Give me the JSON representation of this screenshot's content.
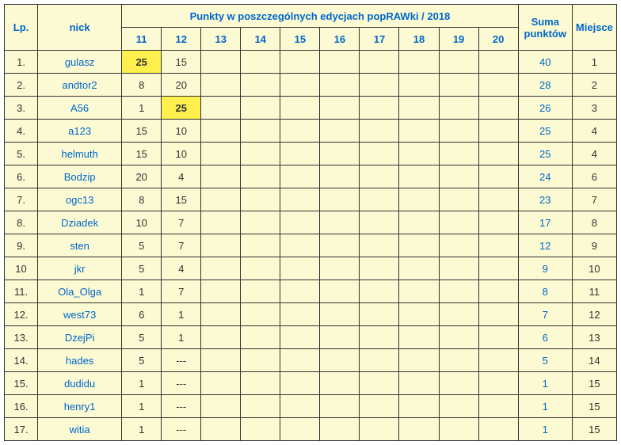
{
  "headers": {
    "lp": "Lp.",
    "nick": "nick",
    "editions_title": "Punkty w poszczególnych edycjach popRAWki / 2018",
    "editions": [
      "11",
      "12",
      "13",
      "14",
      "15",
      "16",
      "17",
      "18",
      "19",
      "20"
    ],
    "suma": "Suma punktów",
    "miejsce": "Miejsce"
  },
  "rows": [
    {
      "lp": "1.",
      "nick": "gulasz",
      "vals": [
        "25",
        "15",
        "",
        "",
        "",
        "",
        "",
        "",
        "",
        ""
      ],
      "hl": [
        true,
        false,
        false,
        false,
        false,
        false,
        false,
        false,
        false,
        false
      ],
      "suma": "40",
      "miejsce": "1"
    },
    {
      "lp": "2.",
      "nick": "andtor2",
      "vals": [
        "8",
        "20",
        "",
        "",
        "",
        "",
        "",
        "",
        "",
        ""
      ],
      "hl": [
        false,
        false,
        false,
        false,
        false,
        false,
        false,
        false,
        false,
        false
      ],
      "suma": "28",
      "miejsce": "2"
    },
    {
      "lp": "3.",
      "nick": "A56",
      "vals": [
        "1",
        "25",
        "",
        "",
        "",
        "",
        "",
        "",
        "",
        ""
      ],
      "hl": [
        false,
        true,
        false,
        false,
        false,
        false,
        false,
        false,
        false,
        false
      ],
      "suma": "26",
      "miejsce": "3"
    },
    {
      "lp": "4.",
      "nick": "a123",
      "vals": [
        "15",
        "10",
        "",
        "",
        "",
        "",
        "",
        "",
        "",
        ""
      ],
      "hl": [
        false,
        false,
        false,
        false,
        false,
        false,
        false,
        false,
        false,
        false
      ],
      "suma": "25",
      "miejsce": "4"
    },
    {
      "lp": "5.",
      "nick": "helmuth",
      "vals": [
        "15",
        "10",
        "",
        "",
        "",
        "",
        "",
        "",
        "",
        ""
      ],
      "hl": [
        false,
        false,
        false,
        false,
        false,
        false,
        false,
        false,
        false,
        false
      ],
      "suma": "25",
      "miejsce": "4"
    },
    {
      "lp": "6.",
      "nick": "Bodzip",
      "vals": [
        "20",
        "4",
        "",
        "",
        "",
        "",
        "",
        "",
        "",
        ""
      ],
      "hl": [
        false,
        false,
        false,
        false,
        false,
        false,
        false,
        false,
        false,
        false
      ],
      "suma": "24",
      "miejsce": "6"
    },
    {
      "lp": "7.",
      "nick": "ogc13",
      "vals": [
        "8",
        "15",
        "",
        "",
        "",
        "",
        "",
        "",
        "",
        ""
      ],
      "hl": [
        false,
        false,
        false,
        false,
        false,
        false,
        false,
        false,
        false,
        false
      ],
      "suma": "23",
      "miejsce": "7"
    },
    {
      "lp": "8.",
      "nick": "Dziadek",
      "vals": [
        "10",
        "7",
        "",
        "",
        "",
        "",
        "",
        "",
        "",
        ""
      ],
      "hl": [
        false,
        false,
        false,
        false,
        false,
        false,
        false,
        false,
        false,
        false
      ],
      "suma": "17",
      "miejsce": "8"
    },
    {
      "lp": "9.",
      "nick": "sten",
      "vals": [
        "5",
        "7",
        "",
        "",
        "",
        "",
        "",
        "",
        "",
        ""
      ],
      "hl": [
        false,
        false,
        false,
        false,
        false,
        false,
        false,
        false,
        false,
        false
      ],
      "suma": "12",
      "miejsce": "9"
    },
    {
      "lp": "10",
      "nick": "jkr",
      "vals": [
        "5",
        "4",
        "",
        "",
        "",
        "",
        "",
        "",
        "",
        ""
      ],
      "hl": [
        false,
        false,
        false,
        false,
        false,
        false,
        false,
        false,
        false,
        false
      ],
      "suma": "9",
      "miejsce": "10"
    },
    {
      "lp": "11.",
      "nick": "Ola_Olga",
      "vals": [
        "1",
        "7",
        "",
        "",
        "",
        "",
        "",
        "",
        "",
        ""
      ],
      "hl": [
        false,
        false,
        false,
        false,
        false,
        false,
        false,
        false,
        false,
        false
      ],
      "suma": "8",
      "miejsce": "11"
    },
    {
      "lp": "12.",
      "nick": "west73",
      "vals": [
        "6",
        "1",
        "",
        "",
        "",
        "",
        "",
        "",
        "",
        ""
      ],
      "hl": [
        false,
        false,
        false,
        false,
        false,
        false,
        false,
        false,
        false,
        false
      ],
      "suma": "7",
      "miejsce": "12"
    },
    {
      "lp": "13.",
      "nick": "DzejPi",
      "vals": [
        "5",
        "1",
        "",
        "",
        "",
        "",
        "",
        "",
        "",
        ""
      ],
      "hl": [
        false,
        false,
        false,
        false,
        false,
        false,
        false,
        false,
        false,
        false
      ],
      "suma": "6",
      "miejsce": "13"
    },
    {
      "lp": "14.",
      "nick": "hades",
      "vals": [
        "5",
        "---",
        "",
        "",
        "",
        "",
        "",
        "",
        "",
        ""
      ],
      "hl": [
        false,
        false,
        false,
        false,
        false,
        false,
        false,
        false,
        false,
        false
      ],
      "suma": "5",
      "miejsce": "14"
    },
    {
      "lp": "15.",
      "nick": "dudidu",
      "vals": [
        "1",
        "---",
        "",
        "",
        "",
        "",
        "",
        "",
        "",
        ""
      ],
      "hl": [
        false,
        false,
        false,
        false,
        false,
        false,
        false,
        false,
        false,
        false
      ],
      "suma": "1",
      "miejsce": "15"
    },
    {
      "lp": "16.",
      "nick": "henry1",
      "vals": [
        "1",
        "---",
        "",
        "",
        "",
        "",
        "",
        "",
        "",
        ""
      ],
      "hl": [
        false,
        false,
        false,
        false,
        false,
        false,
        false,
        false,
        false,
        false
      ],
      "suma": "1",
      "miejsce": "15"
    },
    {
      "lp": "17.",
      "nick": "witia",
      "vals": [
        "1",
        "---",
        "",
        "",
        "",
        "",
        "",
        "",
        "",
        ""
      ],
      "hl": [
        false,
        false,
        false,
        false,
        false,
        false,
        false,
        false,
        false,
        false
      ],
      "suma": "1",
      "miejsce": "15"
    }
  ]
}
